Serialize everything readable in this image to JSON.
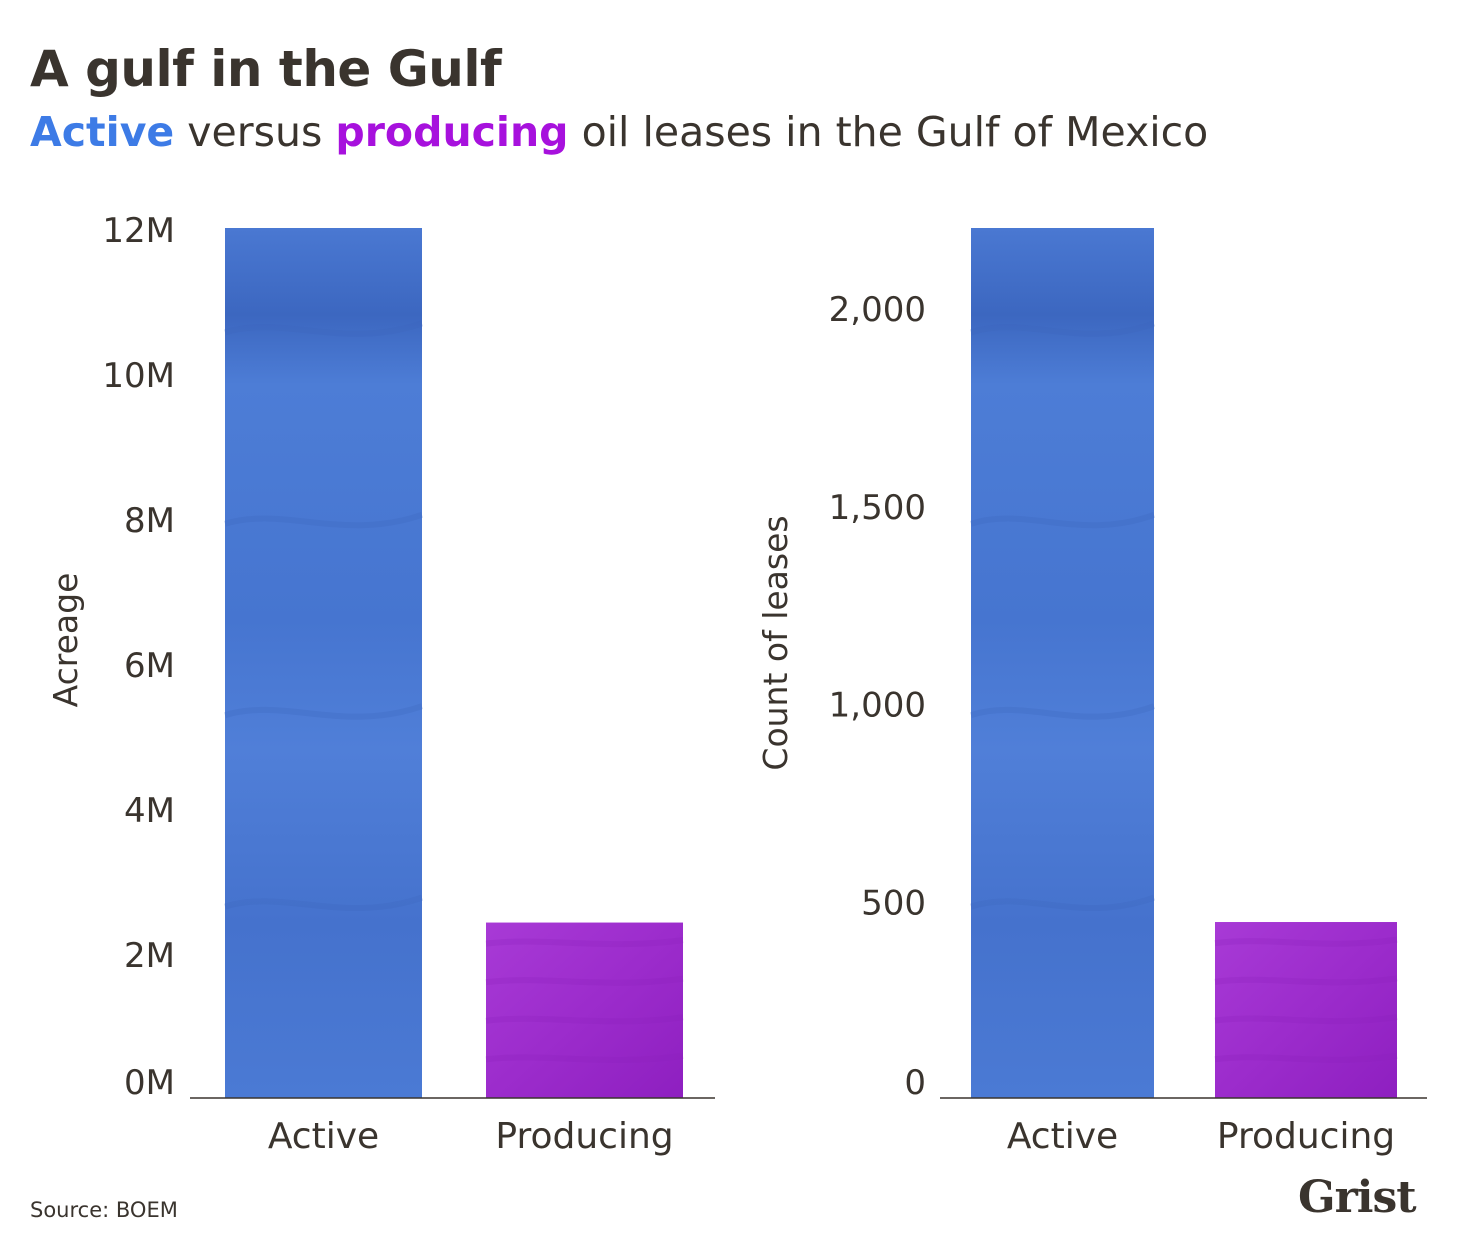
{
  "title": "A gulf in the Gulf",
  "subtitle": {
    "active_word": "Active",
    "between": " versus ",
    "producing_word": "producing",
    "rest": " oil leases in the Gulf of Mexico"
  },
  "colors": {
    "active": "#4f7fd6",
    "active_dark": "#3a64bd",
    "producing": "#a030d0",
    "producing_dark": "#8a1fbd",
    "title_text": "#3a342e",
    "subtitle_active": "#3d7be6",
    "subtitle_producing": "#a711dd",
    "axis": "#3a342e"
  },
  "source": "Source: BOEM",
  "logo": "Grist",
  "chart_data": [
    {
      "type": "bar",
      "categories": [
        "Active",
        "Producing"
      ],
      "values": [
        12000000,
        2420000
      ],
      "ylabel": "Acreage",
      "ylim": [
        0,
        12000000
      ],
      "yticks": [
        0,
        2000000,
        4000000,
        6000000,
        8000000,
        10000000,
        12000000
      ],
      "ytick_labels": [
        "0M",
        "2M",
        "4M",
        "6M",
        "8M",
        "10M",
        "12M"
      ],
      "grid": false
    },
    {
      "type": "bar",
      "categories": [
        "Active",
        "Producing"
      ],
      "values": [
        2200,
        445
      ],
      "ylabel": "Count of leases",
      "ylim": [
        0,
        2200
      ],
      "yticks": [
        0,
        500,
        1000,
        1500,
        2000
      ],
      "ytick_labels": [
        "0",
        "500",
        "1,000",
        "1,500",
        "2,000"
      ],
      "grid": false
    }
  ]
}
